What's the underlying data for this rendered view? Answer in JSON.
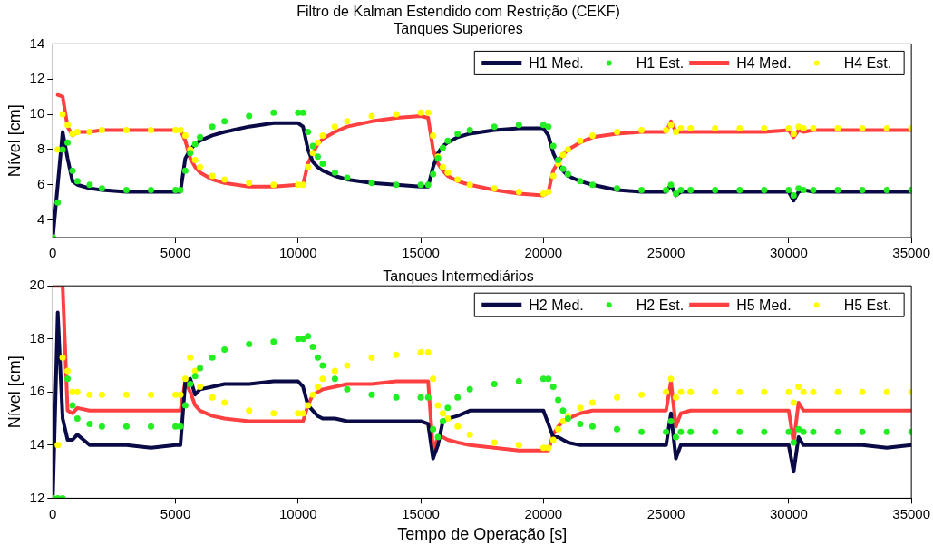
{
  "chart_data": [
    {
      "type": "line",
      "title": "Filtro de Kalman Estendido com Restrição (CEKF)",
      "subtitle": "Tanques Superiores",
      "ylabel": "Nível [cm]",
      "xlim": [
        0,
        35000
      ],
      "xticks": [
        0,
        5000,
        10000,
        15000,
        20000,
        25000,
        30000,
        35000
      ],
      "ylim": [
        3,
        14
      ],
      "yticks": [
        4,
        6,
        8,
        10,
        12,
        14
      ],
      "grid": false,
      "legend": "top right",
      "x": [
        0,
        200,
        400,
        600,
        800,
        1000,
        1500,
        2000,
        3000,
        4000,
        5000,
        5200,
        5400,
        5600,
        5800,
        6000,
        6500,
        7000,
        8000,
        9000,
        10000,
        10200,
        10400,
        10600,
        10800,
        11000,
        11500,
        12000,
        13000,
        14000,
        15000,
        15300,
        15500,
        15700,
        15900,
        16100,
        16500,
        17000,
        18000,
        19000,
        20000,
        20200,
        20400,
        20600,
        20800,
        21000,
        21500,
        22000,
        23000,
        24000,
        25000,
        25200,
        25400,
        25600,
        26000,
        27000,
        28000,
        29000,
        30000,
        30200,
        30400,
        30600,
        31000,
        32000,
        33000,
        34000,
        35000
      ],
      "series": [
        {
          "name": "H1 Med.",
          "type": "line",
          "color": "#0a0a46",
          "values": [
            3,
            6,
            9,
            7.5,
            6.2,
            6.0,
            5.8,
            5.7,
            5.6,
            5.6,
            5.6,
            5.6,
            7.5,
            8.0,
            8.3,
            8.5,
            8.8,
            9.0,
            9.3,
            9.5,
            9.5,
            9.3,
            8.0,
            7.3,
            7.0,
            6.8,
            6.5,
            6.3,
            6.1,
            6.0,
            5.9,
            5.9,
            7.0,
            7.8,
            8.2,
            8.4,
            8.7,
            8.9,
            9.1,
            9.2,
            9.2,
            8.8,
            7.8,
            7.2,
            6.8,
            6.5,
            6.2,
            6.0,
            5.7,
            5.6,
            5.6,
            6.0,
            5.4,
            5.6,
            5.6,
            5.6,
            5.6,
            5.6,
            5.6,
            5.1,
            5.6,
            5.7,
            5.6,
            5.6,
            5.6,
            5.6,
            5.6
          ]
        },
        {
          "name": "H1 Est.",
          "type": "scatter",
          "marker": "circle",
          "color": "#22ee22",
          "values": [
            3,
            5,
            8.0,
            8.4,
            6.8,
            6.2,
            6.0,
            5.8,
            5.7,
            5.7,
            5.7,
            5.7,
            6.8,
            7.8,
            8.3,
            8.7,
            9.3,
            9.6,
            9.9,
            10.1,
            10.1,
            10.1,
            9.0,
            8.2,
            7.6,
            7.2,
            6.7,
            6.4,
            6.1,
            6.0,
            6.0,
            6.0,
            6.6,
            7.5,
            8.1,
            8.5,
            8.9,
            9.1,
            9.3,
            9.4,
            9.4,
            9.3,
            8.2,
            7.4,
            6.9,
            6.6,
            6.2,
            6.0,
            5.8,
            5.7,
            5.7,
            6.0,
            5.5,
            5.7,
            5.7,
            5.7,
            5.7,
            5.7,
            5.7,
            5.4,
            5.8,
            5.7,
            5.7,
            5.7,
            5.7,
            5.7,
            5.7
          ]
        },
        {
          "name": "H4 Med.",
          "type": "line",
          "color": "#ff4040",
          "values": [
            null,
            11.1,
            11.0,
            9.3,
            8.8,
            9.0,
            9.0,
            9.1,
            9.1,
            9.1,
            9.1,
            9.1,
            8.5,
            7.5,
            7.0,
            6.7,
            6.3,
            6.1,
            5.9,
            5.9,
            6.0,
            6.0,
            7.2,
            7.8,
            8.3,
            8.6,
            9.0,
            9.3,
            9.6,
            9.8,
            9.9,
            9.8,
            8.0,
            7.2,
            6.8,
            6.5,
            6.2,
            6.0,
            5.7,
            5.5,
            5.4,
            5.6,
            6.8,
            7.3,
            7.7,
            8.0,
            8.4,
            8.7,
            8.9,
            9.0,
            9.0,
            9.6,
            9.0,
            9.0,
            9.0,
            9.0,
            9.0,
            9.0,
            9.1,
            8.7,
            9.1,
            9.0,
            9.1,
            9.1,
            9.1,
            9.1,
            9.1
          ]
        },
        {
          "name": "H4 Est.",
          "type": "scatter",
          "marker": "circle",
          "color": "#ffff00",
          "values": [
            3,
            8.0,
            10.0,
            9.4,
            8.9,
            9.0,
            9.0,
            9.1,
            9.1,
            9.1,
            9.1,
            9.1,
            8.8,
            8.0,
            7.4,
            7.0,
            6.5,
            6.3,
            6.1,
            6.0,
            6.0,
            6.0,
            7.0,
            7.8,
            8.4,
            8.8,
            9.3,
            9.6,
            9.9,
            10.0,
            10.1,
            10.1,
            8.8,
            7.6,
            7.0,
            6.7,
            6.3,
            6.0,
            5.8,
            5.6,
            5.5,
            5.6,
            6.5,
            7.2,
            7.7,
            8.0,
            8.5,
            8.8,
            9.0,
            9.1,
            9.1,
            9.4,
            9.0,
            9.2,
            9.2,
            9.2,
            9.2,
            9.2,
            9.2,
            8.9,
            9.3,
            9.2,
            9.2,
            9.2,
            9.2,
            9.2,
            9.2
          ]
        }
      ]
    },
    {
      "type": "line",
      "title": "Tanques Intermediários",
      "xlabel": "Tempo de Operação [s]",
      "ylabel": "Nível [cm]",
      "xlim": [
        0,
        35000
      ],
      "xticks": [
        0,
        5000,
        10000,
        15000,
        20000,
        25000,
        30000,
        35000
      ],
      "ylim": [
        12,
        20
      ],
      "yticks": [
        12,
        14,
        16,
        18,
        20
      ],
      "grid": false,
      "legend": "top right",
      "x": [
        0,
        200,
        400,
        600,
        800,
        1000,
        1500,
        2000,
        3000,
        4000,
        5000,
        5200,
        5400,
        5600,
        5800,
        6000,
        6500,
        7000,
        8000,
        9000,
        10000,
        10200,
        10400,
        10600,
        10800,
        11000,
        11500,
        12000,
        13000,
        14000,
        15000,
        15300,
        15500,
        15700,
        15900,
        16100,
        16500,
        17000,
        18000,
        19000,
        20000,
        20200,
        20400,
        20600,
        20800,
        21000,
        21500,
        22000,
        23000,
        24000,
        25000,
        25200,
        25400,
        25600,
        26000,
        27000,
        28000,
        29000,
        30000,
        30200,
        30400,
        30600,
        31000,
        32000,
        33000,
        34000,
        35000
      ],
      "series": [
        {
          "name": "H2 Med.",
          "type": "line",
          "color": "#0a0a46",
          "values": [
            12,
            19,
            15,
            14.2,
            14.2,
            14.4,
            14.0,
            14.0,
            14.0,
            13.9,
            14.0,
            14.0,
            16.4,
            16.5,
            15.9,
            16.1,
            16.2,
            16.3,
            16.3,
            16.4,
            16.4,
            16.2,
            15.5,
            15.3,
            15.1,
            15.0,
            15.0,
            14.9,
            14.9,
            14.9,
            14.9,
            14.8,
            13.5,
            14.0,
            14.9,
            15.0,
            15.1,
            15.3,
            15.3,
            15.3,
            15.3,
            14.8,
            14.3,
            14.3,
            14.2,
            14.1,
            14.0,
            14.0,
            14.0,
            14.0,
            14.0,
            15.2,
            13.5,
            14.0,
            14.0,
            14.0,
            14.0,
            14.0,
            14.0,
            13.0,
            14.3,
            14.0,
            14.0,
            14.0,
            14.0,
            13.9,
            14.0
          ]
        },
        {
          "name": "H2 Est.",
          "type": "scatter",
          "marker": "circle",
          "color": "#22ee22",
          "values": [
            12,
            12,
            12,
            16.5,
            15.5,
            15.0,
            14.8,
            14.7,
            14.7,
            14.7,
            14.7,
            14.7,
            15.5,
            16.3,
            16.6,
            16.9,
            17.3,
            17.6,
            17.8,
            17.9,
            18.0,
            18.0,
            18.1,
            17.7,
            17.3,
            17.0,
            16.5,
            16.1,
            15.9,
            15.8,
            15.8,
            15.8,
            14.6,
            14.3,
            14.9,
            15.4,
            15.8,
            16.1,
            16.3,
            16.4,
            16.5,
            16.5,
            16.2,
            15.7,
            15.3,
            15.0,
            14.8,
            14.7,
            14.6,
            14.5,
            14.5,
            14.9,
            14.3,
            14.5,
            14.5,
            14.5,
            14.5,
            14.5,
            14.5,
            14.1,
            14.6,
            14.5,
            14.5,
            14.5,
            14.5,
            14.5,
            14.5
          ]
        },
        {
          "name": "H5 Med.",
          "type": "line",
          "color": "#ff4040",
          "values": [
            20,
            20,
            20,
            15.3,
            15.2,
            15.4,
            15.3,
            15.3,
            15.3,
            15.3,
            15.3,
            15.3,
            16.4,
            16.0,
            15.5,
            15.3,
            15.1,
            15.0,
            14.9,
            14.9,
            14.9,
            14.9,
            15.5,
            15.9,
            16.0,
            16.1,
            16.2,
            16.3,
            16.3,
            16.4,
            16.4,
            16.4,
            13.8,
            14.3,
            14.3,
            14.2,
            14.1,
            14.0,
            13.9,
            13.8,
            13.8,
            13.8,
            14.4,
            14.7,
            14.9,
            15.0,
            15.2,
            15.3,
            15.3,
            15.3,
            15.3,
            16.4,
            14.7,
            15.2,
            15.3,
            15.3,
            15.3,
            15.3,
            15.3,
            14.1,
            15.6,
            15.3,
            15.3,
            15.3,
            15.3,
            15.3,
            15.3
          ]
        },
        {
          "name": "H5 Est.",
          "type": "scatter",
          "marker": "circle",
          "color": "#ffff00",
          "values": [
            12,
            14,
            17.3,
            16.8,
            16.0,
            16.0,
            15.9,
            15.9,
            15.9,
            15.9,
            15.9,
            15.9,
            16.5,
            17.3,
            16.8,
            16.2,
            15.8,
            15.6,
            15.3,
            15.2,
            15.2,
            15.2,
            15.5,
            15.9,
            16.2,
            16.5,
            16.8,
            17.0,
            17.3,
            17.4,
            17.5,
            17.5,
            16.5,
            15.5,
            15.2,
            15.0,
            14.7,
            14.4,
            14.1,
            14.0,
            13.9,
            13.9,
            14.2,
            14.6,
            14.9,
            15.1,
            15.4,
            15.6,
            15.8,
            15.9,
            16.0,
            16.5,
            15.8,
            16.0,
            16.0,
            16.0,
            16.0,
            16.0,
            16.0,
            15.6,
            16.2,
            16.0,
            16.0,
            16.0,
            16.0,
            16.0,
            16.0
          ]
        }
      ]
    }
  ]
}
